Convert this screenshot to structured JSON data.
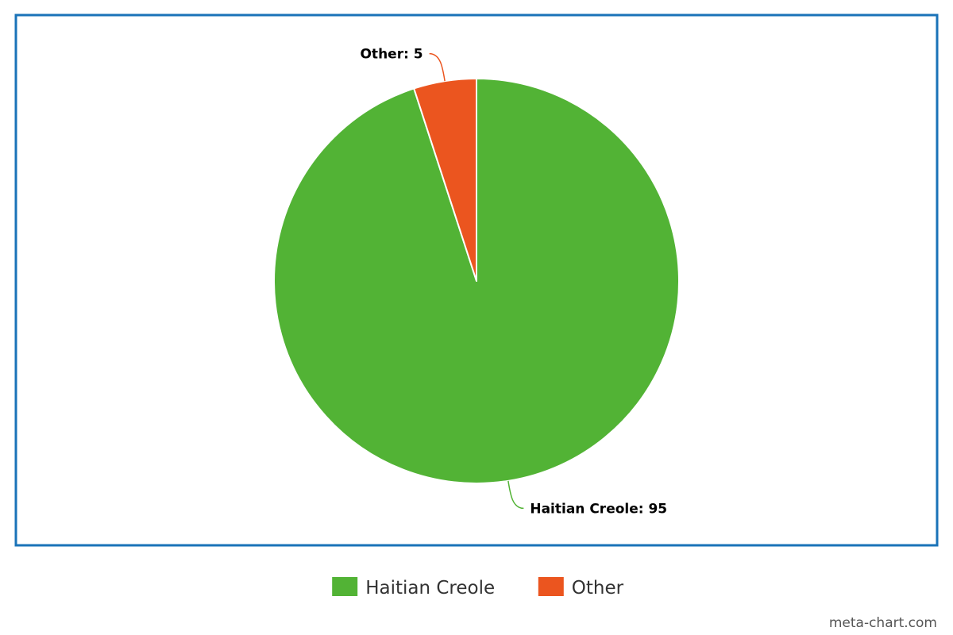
{
  "chart_data": {
    "type": "pie",
    "title": "",
    "categories": [
      "Haitian Creole",
      "Other"
    ],
    "values": [
      95,
      5
    ],
    "colors": [
      "#52b335",
      "#eb551f"
    ],
    "data_labels": [
      "Haitian Creole: 95",
      "Other: 5"
    ],
    "legend": {
      "position": "bottom",
      "entries": [
        "Haitian Creole",
        "Other"
      ]
    },
    "start_angle": "12 o'clock, clockwise",
    "border_color": "#1a73b8"
  },
  "credit": "meta-chart.com"
}
